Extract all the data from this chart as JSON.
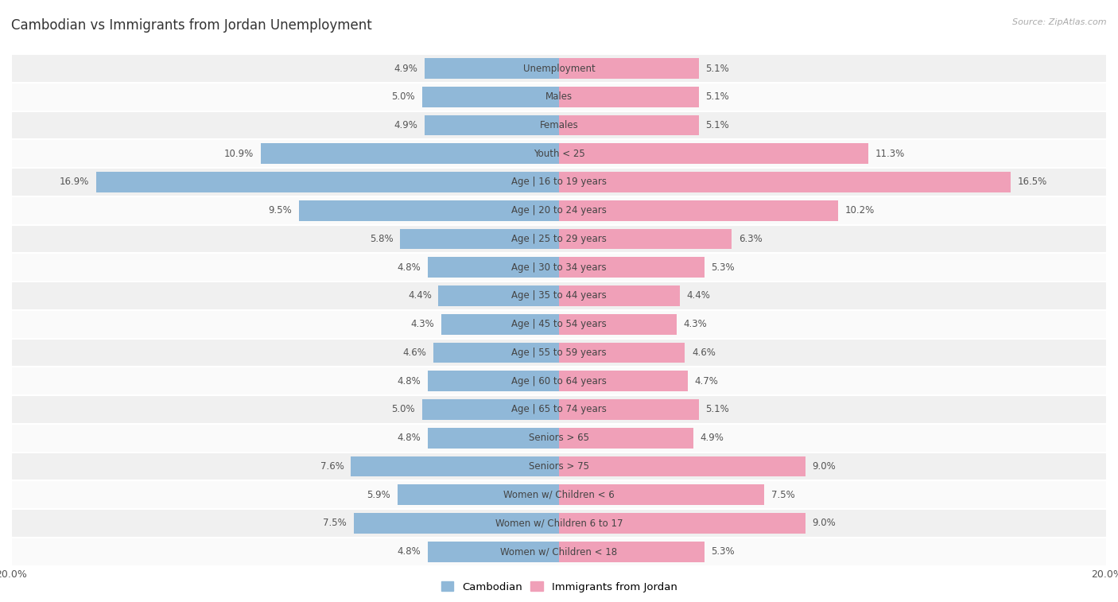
{
  "title": "Cambodian vs Immigrants from Jordan Unemployment",
  "source": "Source: ZipAtlas.com",
  "categories": [
    "Unemployment",
    "Males",
    "Females",
    "Youth < 25",
    "Age | 16 to 19 years",
    "Age | 20 to 24 years",
    "Age | 25 to 29 years",
    "Age | 30 to 34 years",
    "Age | 35 to 44 years",
    "Age | 45 to 54 years",
    "Age | 55 to 59 years",
    "Age | 60 to 64 years",
    "Age | 65 to 74 years",
    "Seniors > 65",
    "Seniors > 75",
    "Women w/ Children < 6",
    "Women w/ Children 6 to 17",
    "Women w/ Children < 18"
  ],
  "cambodian": [
    4.9,
    5.0,
    4.9,
    10.9,
    16.9,
    9.5,
    5.8,
    4.8,
    4.4,
    4.3,
    4.6,
    4.8,
    5.0,
    4.8,
    7.6,
    5.9,
    7.5,
    4.8
  ],
  "jordan": [
    5.1,
    5.1,
    5.1,
    11.3,
    16.5,
    10.2,
    6.3,
    5.3,
    4.4,
    4.3,
    4.6,
    4.7,
    5.1,
    4.9,
    9.0,
    7.5,
    9.0,
    5.3
  ],
  "cambodian_color": "#90b8d8",
  "jordan_color": "#f0a0b8",
  "background_color": "#ffffff",
  "row_bg_odd": "#f0f0f0",
  "row_bg_even": "#fafafa",
  "xlim": 20.0,
  "label_fontsize": 8.5,
  "title_fontsize": 12,
  "legend_label_cambodian": "Cambodian",
  "legend_label_jordan": "Immigrants from Jordan"
}
